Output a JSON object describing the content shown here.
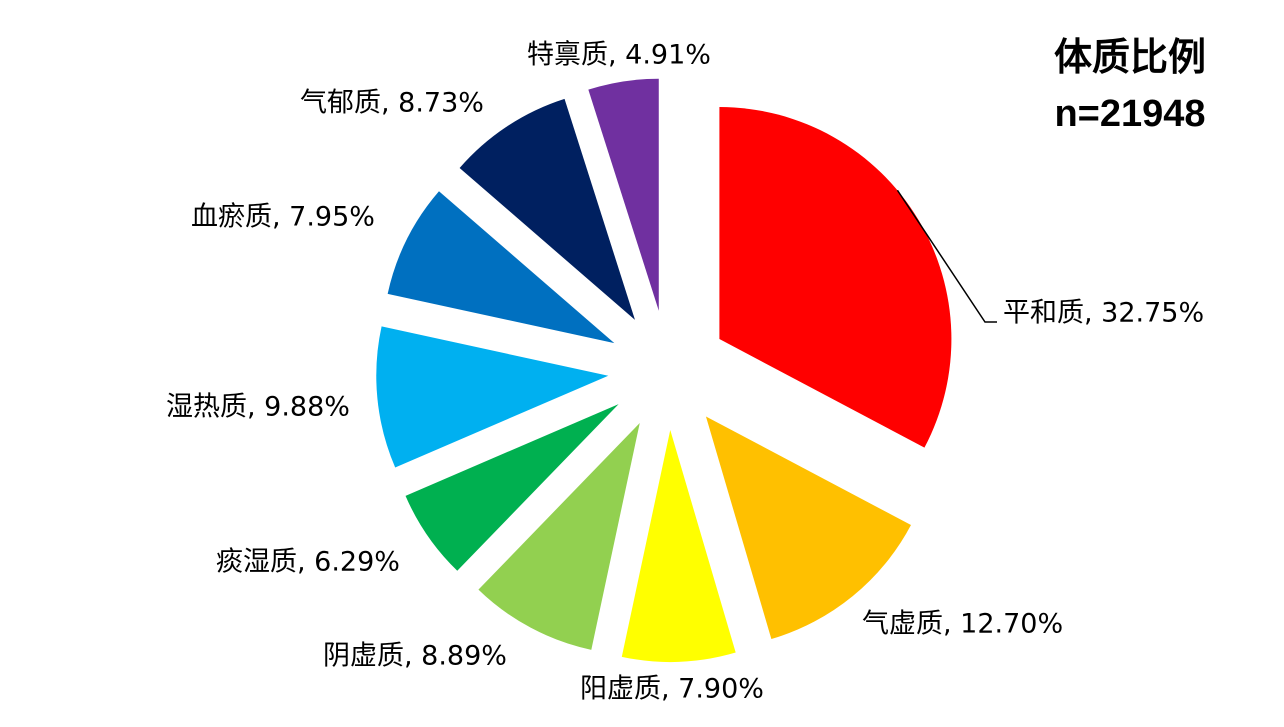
{
  "chart_data": {
    "type": "pie",
    "title": "体质比例",
    "subtitle": "n=21948",
    "values": [
      32.75,
      12.7,
      7.9,
      8.89,
      6.29,
      9.88,
      7.95,
      8.73,
      4.91
    ],
    "value_labels": [
      "平和质, 32.75%",
      "气虚质, 12.70%",
      "阳虚质, 7.90%",
      "阴虚质, 8.89%",
      "痰湿质, 6.29%",
      "湿热质, 9.88%",
      "血瘀质, 7.95%",
      "气郁质, 8.73%",
      "特禀质, 4.91%"
    ],
    "colors": [
      "#FF0000",
      "#FFC000",
      "#FFFF00",
      "#92D050",
      "#00B050",
      "#00B0F0",
      "#0070C0",
      "#002060",
      "#7030A0"
    ]
  }
}
